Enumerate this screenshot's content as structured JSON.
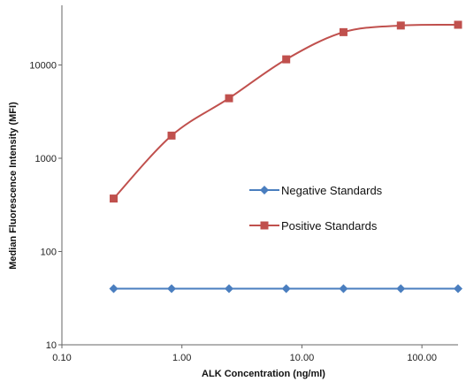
{
  "chart_data": {
    "type": "line",
    "title": "",
    "xlabel": "ALK Concentration  (ng/ml)",
    "ylabel": "Median Fluorescence Intensity (MFI)",
    "x_scale": "log",
    "y_scale": "log",
    "xlim": [
      0.1,
      200
    ],
    "ylim": [
      10,
      40000
    ],
    "x_ticks": [
      "0.10",
      "1.00",
      "10.00",
      "100.00"
    ],
    "y_ticks": [
      "10",
      "100",
      "1000",
      "10000"
    ],
    "grid": false,
    "legend_position": "center-right",
    "x": [
      0.27,
      0.82,
      2.47,
      7.4,
      22.2,
      66.7,
      200
    ],
    "series": [
      {
        "name": "Negative Standards",
        "color": "#4a7ebf",
        "marker": "diamond",
        "values": [
          40,
          40,
          40,
          40,
          40,
          40,
          40
        ]
      },
      {
        "name": "Positive Standards",
        "color": "#c0504d",
        "marker": "square",
        "values": [
          370,
          1750,
          4400,
          11500,
          22500,
          26500,
          27000
        ]
      }
    ]
  }
}
